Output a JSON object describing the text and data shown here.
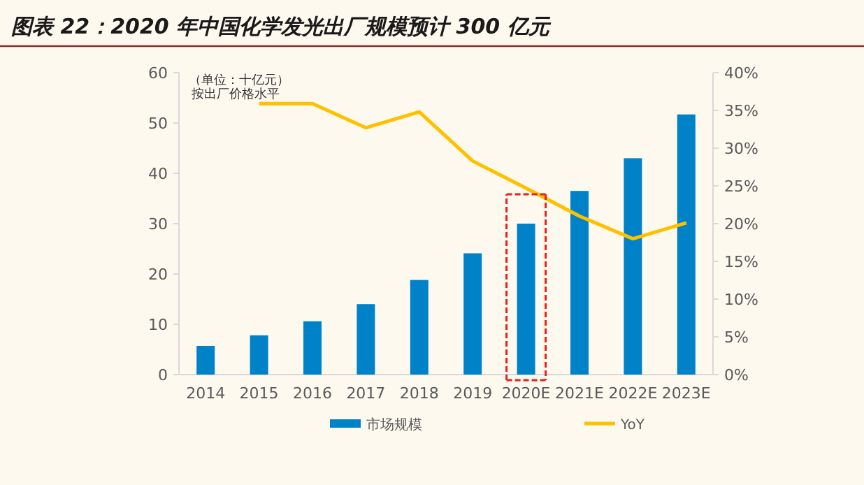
{
  "chart_data": {
    "type": "bar",
    "title": "图表 22：2020 年中国化学发光出厂规模预计 300 亿元",
    "categories": [
      "2014",
      "2015",
      "2016",
      "2017",
      "2018",
      "2019",
      "2020E",
      "2021E",
      "2022E",
      "2023E"
    ],
    "series": [
      {
        "name": "市场规模",
        "color": "#0082c8",
        "values": [
          5.7,
          7.8,
          10.6,
          14.0,
          18.8,
          24.1,
          30.0,
          36.5,
          43.0,
          51.7
        ]
      },
      {
        "name": "YoY",
        "type": "line",
        "axis": "y2",
        "color": "#ffc000",
        "values": [
          null,
          35.9,
          35.9,
          32.7,
          34.8,
          28.3,
          24.7,
          21.0,
          18.0,
          20.1
        ]
      }
    ],
    "ylim": [
      0,
      60
    ],
    "yticks": [
      0,
      10,
      20,
      30,
      40,
      50,
      60
    ],
    "y2lim": [
      0,
      40
    ],
    "y2ticks": [
      {
        "value": 0,
        "label": "0%"
      },
      {
        "value": 5,
        "label": "5%"
      },
      {
        "value": 10,
        "label": "10%"
      },
      {
        "value": 15,
        "label": "15%"
      },
      {
        "value": 20,
        "label": "20%"
      },
      {
        "value": 25,
        "label": "25%"
      },
      {
        "value": 30,
        "label": "30%"
      },
      {
        "value": 35,
        "label": "35%"
      },
      {
        "value": 40,
        "label": "40%"
      }
    ],
    "annotations": [
      "（单位：十亿元）",
      "按出厂价格水平"
    ],
    "legend": "bottom",
    "grid": false,
    "marker": "none",
    "line_style": "solid"
  }
}
